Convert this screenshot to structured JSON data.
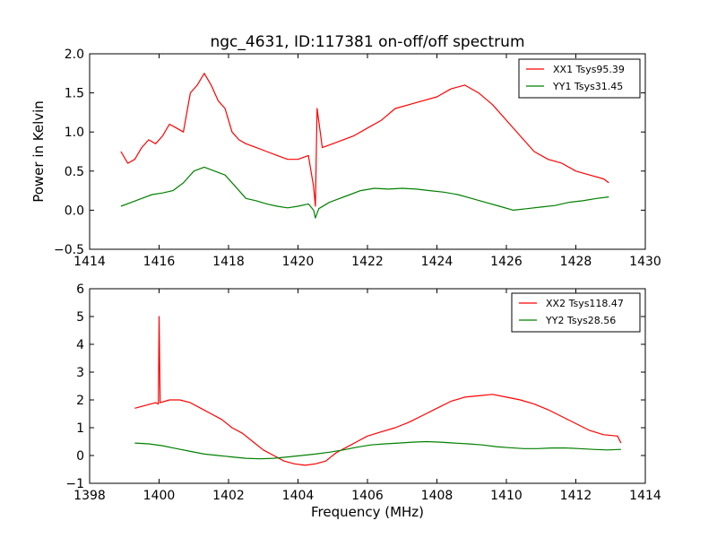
{
  "figure": {
    "title": "ngc_4631, ID:117381 on-off/off spectrum"
  },
  "colors": {
    "red": "#ff0000",
    "green": "#008000",
    "axis": "#000000"
  },
  "chart_data": [
    {
      "type": "line",
      "title": "ngc_4631, ID:117381 on-off/off spectrum",
      "xlabel": "",
      "ylabel": "Power in Kelvin",
      "xlim": [
        1414,
        1430
      ],
      "ylim": [
        -0.5,
        2.0
      ],
      "xticks": [
        1414,
        1416,
        1418,
        1420,
        1422,
        1424,
        1426,
        1428,
        1430
      ],
      "xtick_labels": [
        "1414",
        "1416",
        "1418",
        "1420",
        "1422",
        "1424",
        "1426",
        "1428",
        "1430"
      ],
      "yticks": [
        -0.5,
        0.0,
        0.5,
        1.0,
        1.5,
        2.0
      ],
      "ytick_labels": [
        "−0.5",
        "0.0",
        "0.5",
        "1.0",
        "1.5",
        "2.0"
      ],
      "legend": "top-right",
      "series": [
        {
          "name": "XX1 Tsys95.39",
          "color": "#ff0000",
          "points": [
            [
              1414.9,
              0.75
            ],
            [
              1415.1,
              0.6
            ],
            [
              1415.3,
              0.65
            ],
            [
              1415.5,
              0.8
            ],
            [
              1415.7,
              0.9
            ],
            [
              1415.9,
              0.85
            ],
            [
              1416.1,
              0.95
            ],
            [
              1416.3,
              1.1
            ],
            [
              1416.5,
              1.05
            ],
            [
              1416.7,
              1.0
            ],
            [
              1416.9,
              1.5
            ],
            [
              1417.1,
              1.6
            ],
            [
              1417.3,
              1.75
            ],
            [
              1417.5,
              1.6
            ],
            [
              1417.7,
              1.4
            ],
            [
              1417.9,
              1.3
            ],
            [
              1418.1,
              1.0
            ],
            [
              1418.3,
              0.9
            ],
            [
              1418.5,
              0.85
            ],
            [
              1418.8,
              0.8
            ],
            [
              1419.1,
              0.75
            ],
            [
              1419.4,
              0.7
            ],
            [
              1419.7,
              0.65
            ],
            [
              1420.0,
              0.65
            ],
            [
              1420.3,
              0.7
            ],
            [
              1420.45,
              0.3
            ],
            [
              1420.5,
              0.05
            ],
            [
              1420.55,
              1.3
            ],
            [
              1420.7,
              0.8
            ],
            [
              1421.0,
              0.85
            ],
            [
              1421.3,
              0.9
            ],
            [
              1421.6,
              0.95
            ],
            [
              1422.0,
              1.05
            ],
            [
              1422.4,
              1.15
            ],
            [
              1422.8,
              1.3
            ],
            [
              1423.2,
              1.35
            ],
            [
              1423.6,
              1.4
            ],
            [
              1424.0,
              1.45
            ],
            [
              1424.4,
              1.55
            ],
            [
              1424.8,
              1.6
            ],
            [
              1425.2,
              1.5
            ],
            [
              1425.6,
              1.35
            ],
            [
              1426.0,
              1.15
            ],
            [
              1426.4,
              0.95
            ],
            [
              1426.8,
              0.75
            ],
            [
              1427.2,
              0.65
            ],
            [
              1427.6,
              0.6
            ],
            [
              1428.0,
              0.5
            ],
            [
              1428.4,
              0.45
            ],
            [
              1428.8,
              0.4
            ],
            [
              1428.95,
              0.35
            ]
          ]
        },
        {
          "name": "YY1 Tsys31.45",
          "color": "#008000",
          "points": [
            [
              1414.9,
              0.05
            ],
            [
              1415.2,
              0.1
            ],
            [
              1415.5,
              0.15
            ],
            [
              1415.8,
              0.2
            ],
            [
              1416.1,
              0.22
            ],
            [
              1416.4,
              0.25
            ],
            [
              1416.7,
              0.35
            ],
            [
              1417.0,
              0.5
            ],
            [
              1417.3,
              0.55
            ],
            [
              1417.6,
              0.5
            ],
            [
              1417.9,
              0.45
            ],
            [
              1418.2,
              0.3
            ],
            [
              1418.5,
              0.15
            ],
            [
              1418.8,
              0.12
            ],
            [
              1419.1,
              0.08
            ],
            [
              1419.4,
              0.05
            ],
            [
              1419.7,
              0.03
            ],
            [
              1420.0,
              0.05
            ],
            [
              1420.3,
              0.08
            ],
            [
              1420.45,
              0.0
            ],
            [
              1420.5,
              -0.1
            ],
            [
              1420.6,
              0.02
            ],
            [
              1420.9,
              0.1
            ],
            [
              1421.2,
              0.15
            ],
            [
              1421.5,
              0.2
            ],
            [
              1421.8,
              0.25
            ],
            [
              1422.2,
              0.28
            ],
            [
              1422.6,
              0.27
            ],
            [
              1423.0,
              0.28
            ],
            [
              1423.4,
              0.27
            ],
            [
              1423.8,
              0.25
            ],
            [
              1424.2,
              0.23
            ],
            [
              1424.6,
              0.2
            ],
            [
              1425.0,
              0.15
            ],
            [
              1425.4,
              0.1
            ],
            [
              1425.8,
              0.05
            ],
            [
              1426.2,
              0.0
            ],
            [
              1426.6,
              0.02
            ],
            [
              1427.0,
              0.04
            ],
            [
              1427.4,
              0.06
            ],
            [
              1427.8,
              0.1
            ],
            [
              1428.2,
              0.12
            ],
            [
              1428.6,
              0.15
            ],
            [
              1428.95,
              0.17
            ]
          ]
        }
      ]
    },
    {
      "type": "line",
      "title": "",
      "xlabel": "Frequency (MHz)",
      "ylabel": "",
      "xlim": [
        1398,
        1414
      ],
      "ylim": [
        -1,
        6
      ],
      "xticks": [
        1398,
        1400,
        1402,
        1404,
        1406,
        1408,
        1410,
        1412,
        1414
      ],
      "xtick_labels": [
        "1398",
        "1400",
        "1402",
        "1404",
        "1406",
        "1408",
        "1410",
        "1412",
        "1414"
      ],
      "yticks": [
        -1,
        0,
        1,
        2,
        3,
        4,
        5,
        6
      ],
      "ytick_labels": [
        "−1",
        "0",
        "1",
        "2",
        "3",
        "4",
        "5",
        "6"
      ],
      "legend": "top-right",
      "series": [
        {
          "name": "XX2 Tsys118.47",
          "color": "#ff0000",
          "points": [
            [
              1399.3,
              1.7
            ],
            [
              1399.6,
              1.8
            ],
            [
              1399.9,
              1.9
            ],
            [
              1399.98,
              1.85
            ],
            [
              1400.0,
              5.0
            ],
            [
              1400.03,
              1.9
            ],
            [
              1400.3,
              2.0
            ],
            [
              1400.6,
              2.0
            ],
            [
              1400.9,
              1.9
            ],
            [
              1401.2,
              1.7
            ],
            [
              1401.5,
              1.5
            ],
            [
              1401.8,
              1.3
            ],
            [
              1402.1,
              1.0
            ],
            [
              1402.4,
              0.8
            ],
            [
              1402.7,
              0.5
            ],
            [
              1403.0,
              0.2
            ],
            [
              1403.3,
              0.0
            ],
            [
              1403.6,
              -0.2
            ],
            [
              1403.9,
              -0.3
            ],
            [
              1404.2,
              -0.35
            ],
            [
              1404.5,
              -0.3
            ],
            [
              1404.8,
              -0.2
            ],
            [
              1405.1,
              0.1
            ],
            [
              1405.4,
              0.3
            ],
            [
              1405.7,
              0.5
            ],
            [
              1406.0,
              0.7
            ],
            [
              1406.4,
              0.85
            ],
            [
              1406.8,
              1.0
            ],
            [
              1407.2,
              1.2
            ],
            [
              1407.6,
              1.45
            ],
            [
              1408.0,
              1.7
            ],
            [
              1408.4,
              1.95
            ],
            [
              1408.8,
              2.1
            ],
            [
              1409.2,
              2.15
            ],
            [
              1409.6,
              2.2
            ],
            [
              1410.0,
              2.1
            ],
            [
              1410.4,
              2.0
            ],
            [
              1410.8,
              1.85
            ],
            [
              1411.2,
              1.65
            ],
            [
              1411.6,
              1.4
            ],
            [
              1412.0,
              1.15
            ],
            [
              1412.4,
              0.9
            ],
            [
              1412.8,
              0.75
            ],
            [
              1413.2,
              0.7
            ],
            [
              1413.3,
              0.45
            ]
          ]
        },
        {
          "name": "YY2 Tsys28.56",
          "color": "#008000",
          "points": [
            [
              1399.3,
              0.45
            ],
            [
              1399.7,
              0.42
            ],
            [
              1400.1,
              0.35
            ],
            [
              1400.5,
              0.25
            ],
            [
              1400.9,
              0.15
            ],
            [
              1401.3,
              0.05
            ],
            [
              1401.7,
              0.0
            ],
            [
              1402.1,
              -0.05
            ],
            [
              1402.5,
              -0.1
            ],
            [
              1402.9,
              -0.12
            ],
            [
              1403.3,
              -0.1
            ],
            [
              1403.7,
              -0.05
            ],
            [
              1404.1,
              0.0
            ],
            [
              1404.5,
              0.05
            ],
            [
              1404.9,
              0.12
            ],
            [
              1405.3,
              0.2
            ],
            [
              1405.7,
              0.3
            ],
            [
              1406.1,
              0.38
            ],
            [
              1406.5,
              0.42
            ],
            [
              1406.9,
              0.45
            ],
            [
              1407.3,
              0.48
            ],
            [
              1407.7,
              0.5
            ],
            [
              1408.1,
              0.48
            ],
            [
              1408.5,
              0.45
            ],
            [
              1408.9,
              0.42
            ],
            [
              1409.3,
              0.38
            ],
            [
              1409.7,
              0.32
            ],
            [
              1410.1,
              0.28
            ],
            [
              1410.5,
              0.25
            ],
            [
              1410.9,
              0.25
            ],
            [
              1411.3,
              0.27
            ],
            [
              1411.7,
              0.27
            ],
            [
              1412.1,
              0.25
            ],
            [
              1412.5,
              0.22
            ],
            [
              1412.9,
              0.2
            ],
            [
              1413.3,
              0.22
            ]
          ]
        }
      ]
    }
  ]
}
